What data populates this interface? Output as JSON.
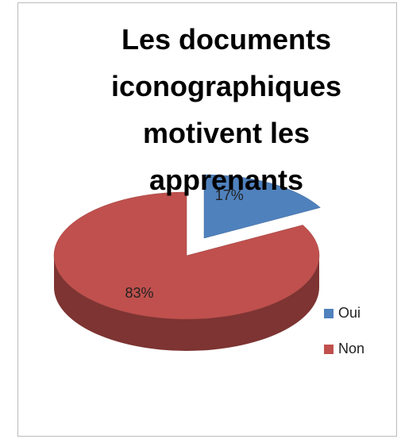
{
  "chart_data": {
    "type": "pie",
    "title": "Les documents iconographiques motivent les apprenants",
    "categories": [
      "Oui",
      "Non"
    ],
    "values": [
      17,
      83
    ],
    "value_labels": [
      "17%",
      "83%"
    ],
    "colors": [
      "#4f81bd",
      "#c0504d"
    ],
    "legend": "right"
  }
}
